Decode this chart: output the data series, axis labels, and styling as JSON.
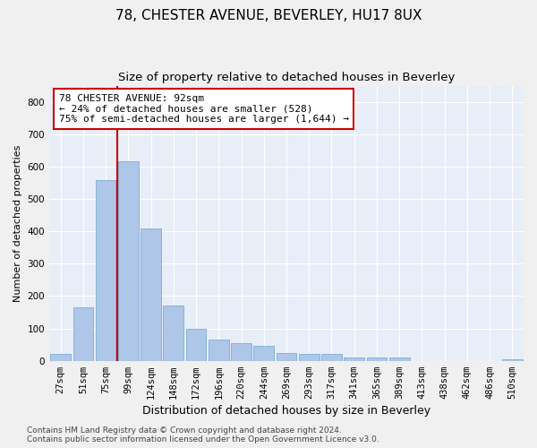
{
  "title1": "78, CHESTER AVENUE, BEVERLEY, HU17 8UX",
  "title2": "Size of property relative to detached houses in Beverley",
  "xlabel": "Distribution of detached houses by size in Beverley",
  "ylabel": "Number of detached properties",
  "categories": [
    "27sqm",
    "51sqm",
    "75sqm",
    "99sqm",
    "124sqm",
    "148sqm",
    "172sqm",
    "196sqm",
    "220sqm",
    "244sqm",
    "269sqm",
    "293sqm",
    "317sqm",
    "341sqm",
    "365sqm",
    "389sqm",
    "413sqm",
    "438sqm",
    "462sqm",
    "486sqm",
    "510sqm"
  ],
  "values": [
    20,
    165,
    558,
    615,
    410,
    170,
    100,
    65,
    55,
    45,
    25,
    20,
    20,
    10,
    10,
    10,
    0,
    0,
    0,
    0,
    5
  ],
  "bar_color": "#aec6e8",
  "bar_edge_color": "#7aadd4",
  "ylim": [
    0,
    850
  ],
  "yticks": [
    0,
    100,
    200,
    300,
    400,
    500,
    600,
    700,
    800
  ],
  "vline_color": "#cc0000",
  "annotation_text": "78 CHESTER AVENUE: 92sqm\n← 24% of detached houses are smaller (528)\n75% of semi-detached houses are larger (1,644) →",
  "footer_text": "Contains HM Land Registry data © Crown copyright and database right 2024.\nContains public sector information licensed under the Open Government Licence v3.0.",
  "background_color": "#e8eef8",
  "grid_color": "#ffffff",
  "title1_fontsize": 11,
  "title2_fontsize": 9.5,
  "xlabel_fontsize": 9,
  "ylabel_fontsize": 8,
  "tick_fontsize": 7.5,
  "annotation_fontsize": 8,
  "footer_fontsize": 6.5
}
